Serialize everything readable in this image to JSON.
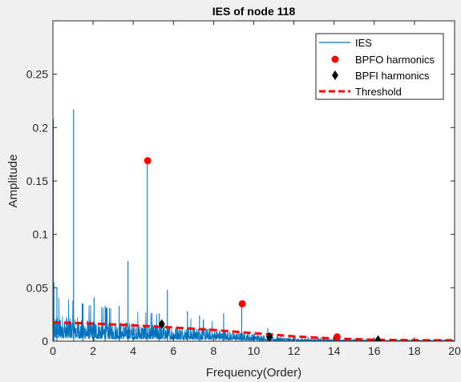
{
  "chart_data": {
    "type": "line",
    "title": "IES of node 118",
    "xlabel": "Frequency(Order)",
    "ylabel": "Amplitude",
    "xlim": [
      0,
      20
    ],
    "ylim": [
      0,
      0.3
    ],
    "xticks": [
      0,
      2,
      4,
      6,
      8,
      10,
      12,
      14,
      16,
      18,
      20
    ],
    "yticks": [
      0,
      0.05,
      0.1,
      0.15,
      0.2,
      0.25
    ],
    "xtick_labels": [
      "0",
      "2",
      "4",
      "6",
      "8",
      "10",
      "12",
      "14",
      "16",
      "18",
      "20"
    ],
    "ytick_labels": [
      "0",
      "0.05",
      "0.1",
      "0.15",
      "0.2",
      "0.25"
    ],
    "grid": false,
    "legend_position": "top-right",
    "legend": [
      "IES",
      "BPFO harmonics",
      "BPFI harmonics",
      "Threshold"
    ],
    "series": [
      {
        "name": "IES",
        "kind": "line",
        "color": "#0072bd",
        "floor": [
          [
            0,
            0.018
          ],
          [
            1,
            0.016
          ],
          [
            2,
            0.014
          ],
          [
            3,
            0.013
          ],
          [
            4,
            0.012
          ],
          [
            5,
            0.011
          ],
          [
            6,
            0.01
          ],
          [
            7,
            0.009
          ],
          [
            8,
            0.008
          ],
          [
            9,
            0.006
          ],
          [
            10,
            0.005
          ],
          [
            11,
            0.003
          ],
          [
            12,
            0.002
          ],
          [
            14,
            0.0012
          ],
          [
            16,
            0.0008
          ],
          [
            18,
            0.0006
          ],
          [
            20,
            0.0005
          ]
        ],
        "peaks": [
          [
            0.02,
            0.208
          ],
          [
            0.05,
            0.055
          ],
          [
            0.2,
            0.05
          ],
          [
            1.03,
            0.217
          ],
          [
            1.5,
            0.035
          ],
          [
            2.05,
            0.041
          ],
          [
            2.6,
            0.033
          ],
          [
            3.3,
            0.033
          ],
          [
            3.74,
            0.075
          ],
          [
            4.7,
            0.169
          ],
          [
            5.3,
            0.026
          ],
          [
            5.7,
            0.048
          ],
          [
            6.7,
            0.028
          ],
          [
            7.3,
            0.024
          ],
          [
            8.5,
            0.026
          ],
          [
            9.4,
            0.035
          ],
          [
            10.7,
            0.012
          ],
          [
            14.1,
            0.006
          ]
        ]
      },
      {
        "name": "BPFO harmonics",
        "kind": "markers",
        "marker": "circle",
        "color": "#ff0000",
        "points": [
          [
            4.72,
            0.169
          ],
          [
            9.43,
            0.035
          ],
          [
            14.15,
            0.004
          ]
        ]
      },
      {
        "name": "BPFI harmonics",
        "kind": "markers",
        "marker": "diamond",
        "color": "#000000",
        "points": [
          [
            5.42,
            0.016
          ],
          [
            10.77,
            0.004
          ],
          [
            16.19,
            0.001
          ]
        ]
      },
      {
        "name": "Threshold",
        "kind": "line",
        "dash": true,
        "color": "#ff0000",
        "points": [
          [
            0,
            0.0175
          ],
          [
            2,
            0.0165
          ],
          [
            4,
            0.0148
          ],
          [
            6,
            0.0128
          ],
          [
            8,
            0.0105
          ],
          [
            10,
            0.0075
          ],
          [
            12,
            0.0045
          ],
          [
            14,
            0.0025
          ],
          [
            16,
            0.0013
          ],
          [
            18,
            0.0009
          ],
          [
            20,
            0.0008
          ]
        ]
      }
    ]
  }
}
